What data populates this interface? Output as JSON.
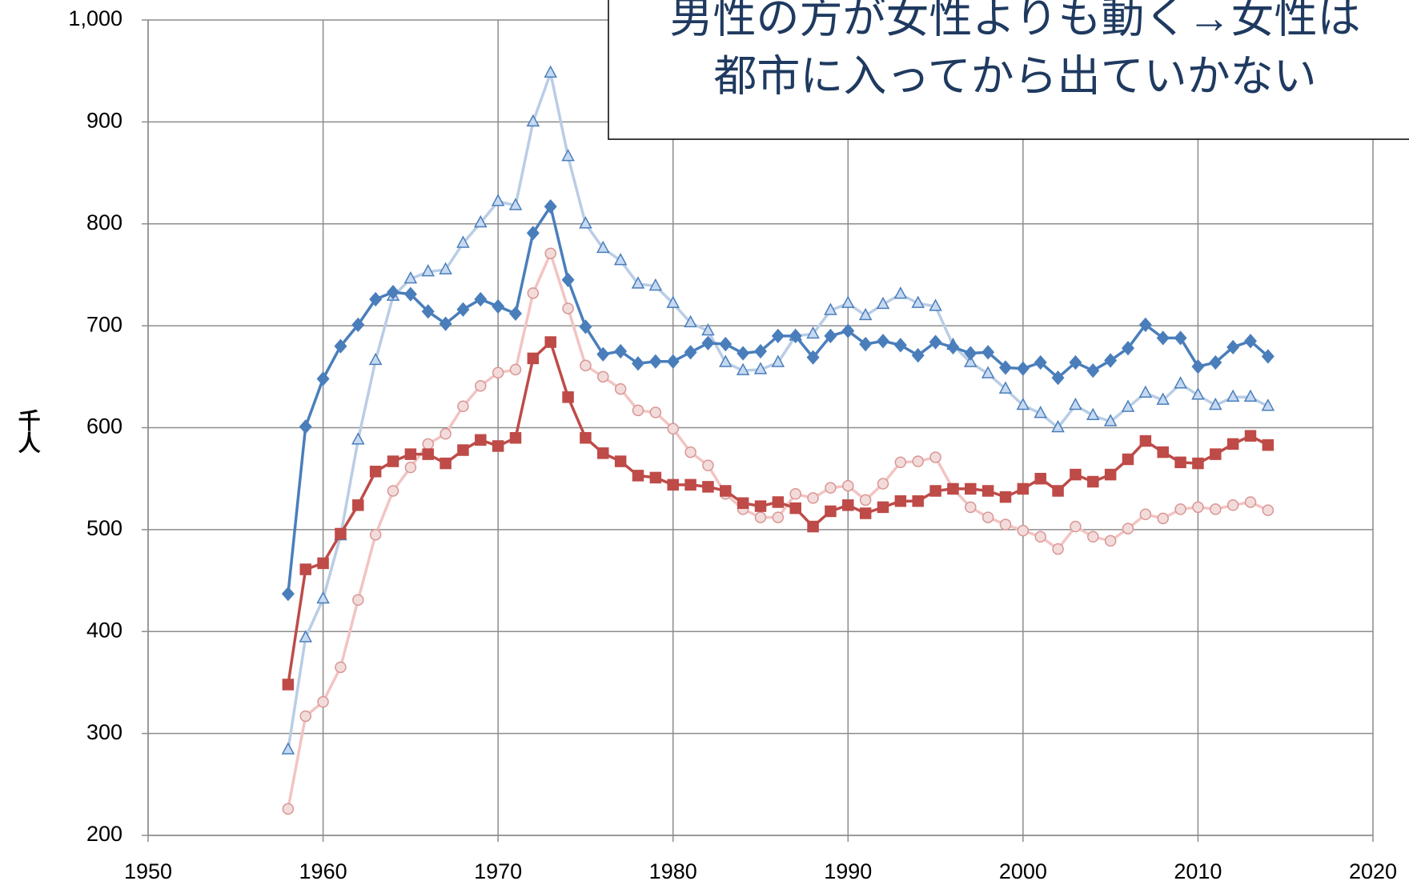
{
  "chart_data": {
    "type": "line",
    "ylabel": "千人",
    "annotation": [
      "男性の方が女性よりも動く→女性は",
      "都市に入ってから出ていかない"
    ],
    "x": [
      1958,
      1959,
      1960,
      1961,
      1962,
      1963,
      1964,
      1965,
      1966,
      1967,
      1968,
      1969,
      1970,
      1971,
      1972,
      1973,
      1974,
      1975,
      1976,
      1977,
      1978,
      1979,
      1980,
      1981,
      1982,
      1983,
      1984,
      1985,
      1986,
      1987,
      1988,
      1989,
      1990,
      1991,
      1992,
      1993,
      1994,
      1995,
      1996,
      1997,
      1998,
      1999,
      2000,
      2001,
      2002,
      2003,
      2004,
      2005,
      2006,
      2007,
      2008,
      2009,
      2010,
      2011,
      2012,
      2013,
      2014
    ],
    "series": [
      {
        "color": "#b9cde5",
        "marker": "triangle",
        "marker_color": "#c6d9f1",
        "marker_edge": "#4a7ebb",
        "values": [
          284,
          394,
          432,
          494,
          588,
          666,
          729,
          746,
          753,
          755,
          781,
          801,
          822,
          818,
          900,
          948,
          866,
          800,
          776,
          764,
          741,
          739,
          722,
          703,
          695,
          664,
          656,
          657,
          664,
          690,
          692,
          715,
          722,
          710,
          721,
          731,
          722,
          719,
          681,
          664,
          653,
          638,
          622,
          614,
          600,
          622,
          612,
          606,
          620,
          634,
          627,
          643,
          632,
          622,
          630,
          630,
          621
        ]
      },
      {
        "color": "#f2c4c3",
        "marker": "circle",
        "marker_color": "#f2dcdb",
        "marker_edge": "#d99694",
        "values": [
          226,
          317,
          331,
          365,
          431,
          495,
          538,
          561,
          584,
          594,
          621,
          641,
          654,
          657,
          732,
          771,
          717,
          661,
          650,
          638,
          617,
          615,
          599,
          576,
          563,
          535,
          520,
          512,
          512,
          535,
          531,
          541,
          543,
          529,
          545,
          566,
          567,
          571,
          540,
          522,
          512,
          505,
          499,
          493,
          481,
          503,
          493,
          489,
          501,
          515,
          511,
          520,
          522,
          520,
          524,
          527,
          519
        ]
      },
      {
        "color": "#4a7ebb",
        "marker": "diamond",
        "marker_color": "#4a7ebb",
        "marker_edge": "#4a7ebb",
        "values": [
          437,
          601,
          648,
          680,
          701,
          726,
          733,
          731,
          714,
          702,
          716,
          726,
          719,
          712,
          791,
          817,
          745,
          699,
          672,
          675,
          663,
          665,
          665,
          674,
          683,
          682,
          673,
          675,
          690,
          690,
          669,
          690,
          695,
          682,
          685,
          681,
          671,
          684,
          679,
          673,
          674,
          659,
          658,
          664,
          649,
          664,
          656,
          666,
          678,
          701,
          688,
          688,
          660,
          664,
          679,
          685,
          670
        ]
      },
      {
        "color": "#be4b48",
        "marker": "square",
        "marker_color": "#be4b48",
        "marker_edge": "#be4b48",
        "values": [
          348,
          461,
          467,
          496,
          524,
          557,
          567,
          574,
          574,
          565,
          578,
          588,
          582,
          590,
          668,
          684,
          630,
          590,
          575,
          567,
          553,
          551,
          544,
          544,
          542,
          538,
          526,
          523,
          527,
          521,
          503,
          518,
          524,
          516,
          522,
          528,
          528,
          538,
          540,
          540,
          538,
          532,
          540,
          550,
          538,
          554,
          547,
          554,
          569,
          587,
          576,
          566,
          565,
          574,
          584,
          592,
          583
        ]
      }
    ],
    "xlim": [
      1950,
      2020
    ],
    "xticks": [
      1950,
      1960,
      1970,
      1980,
      1990,
      2000,
      2010,
      2020
    ],
    "ylim": [
      200,
      1000
    ],
    "yticks": [
      200,
      300,
      400,
      500,
      600,
      700,
      800,
      900,
      {
        "value": 1000,
        "label": "1,000"
      }
    ],
    "grid": true
  }
}
